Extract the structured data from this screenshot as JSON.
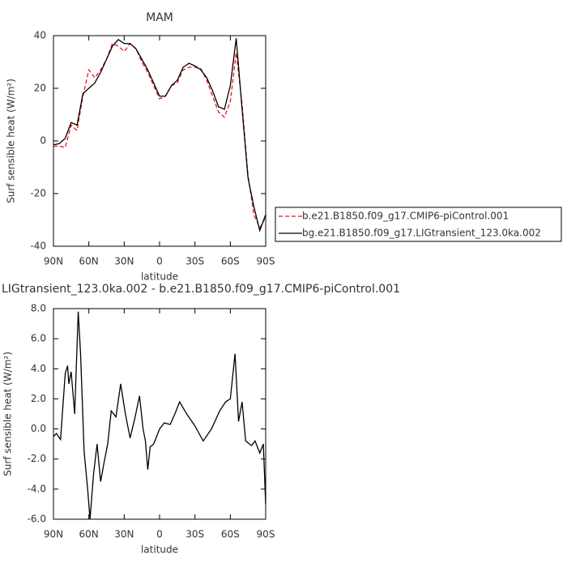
{
  "chart_data": [
    {
      "type": "line",
      "title": "MAM",
      "xlabel": "latitude",
      "ylabel": "Surf sensible heat (W/m²)",
      "x": [
        90,
        85,
        80,
        75,
        70,
        65,
        60,
        55,
        50,
        45,
        40,
        35,
        30,
        25,
        20,
        15,
        10,
        5,
        0,
        -5,
        -10,
        -15,
        -20,
        -25,
        -30,
        -35,
        -40,
        -45,
        -50,
        -55,
        -60,
        -65,
        -70,
        -75,
        -80,
        -85,
        -90
      ],
      "series": [
        {
          "name": "b.e21.B1850.f09_g17.CMIP6-piControl.001",
          "color": "#e8141c",
          "linestyle": "dashed",
          "values": [
            -2,
            -2,
            -2.5,
            6,
            4,
            17,
            27,
            24,
            27,
            31,
            37,
            36,
            34,
            37,
            35,
            30,
            26,
            21,
            16,
            17,
            21,
            22,
            27,
            28,
            28,
            27.5,
            23,
            17,
            11,
            9,
            15,
            33.5,
            14,
            -13,
            -28,
            -33,
            -29
          ]
        },
        {
          "name": "bg.e21.B1850.f09_g17.LIGtransient_123.0ka.002",
          "color": "#000000",
          "linestyle": "solid",
          "values": [
            -1.5,
            -1,
            1,
            7,
            6,
            18,
            20,
            22,
            26,
            31,
            36,
            38.5,
            37,
            37,
            35,
            31,
            27,
            22,
            17,
            17,
            21,
            23,
            28,
            29.5,
            28.5,
            27,
            24,
            19,
            13,
            12,
            21,
            39,
            12,
            -14,
            -25,
            -34,
            -28
          ]
        }
      ],
      "xlim": [
        90,
        -90
      ],
      "xticks": [
        {
          "value": 90,
          "label": "90N"
        },
        {
          "value": 60,
          "label": "60N"
        },
        {
          "value": 30,
          "label": "30N"
        },
        0,
        {
          "value": -30,
          "label": "30S"
        },
        {
          "value": -60,
          "label": "60S"
        },
        {
          "value": -90,
          "label": "90S"
        }
      ],
      "ylim": [
        -40,
        40
      ],
      "yticks": [
        -40,
        -20,
        0,
        20,
        40
      ],
      "legend": "right"
    },
    {
      "type": "line",
      "title": "LIGtransient_123.0ka.002 - b.e21.B1850.f09_g17.CMIP6-piControl.001",
      "xlabel": "latitude",
      "ylabel": "Surf sensible heat (W/m²)",
      "x": [
        90,
        87.5,
        84,
        80,
        78,
        77,
        75,
        72,
        69,
        67,
        64,
        61,
        59,
        56,
        53,
        50,
        47,
        44,
        41,
        37,
        33,
        29,
        25,
        21,
        17,
        14,
        12,
        10,
        8,
        5,
        0,
        -4,
        -9,
        -13,
        -17,
        -23,
        -30,
        -37,
        -44,
        -51,
        -56,
        -60,
        -64,
        -67,
        -70,
        -73,
        -78,
        -81,
        -85,
        -88,
        -90
      ],
      "series": [
        {
          "color": "#000000",
          "linestyle": "solid",
          "values": [
            -0.5,
            -0.3,
            -0.7,
            3.7,
            4.2,
            3,
            3.8,
            1,
            7.8,
            5,
            -1.5,
            -4,
            -6,
            -3,
            -1,
            -3.5,
            -2.2,
            -1,
            1.2,
            0.8,
            3,
            1,
            -0.6,
            0.7,
            2.2,
            0,
            -0.8,
            -2.7,
            -1.2,
            -1,
            0,
            0.4,
            0.3,
            1,
            1.8,
            1,
            0.2,
            -0.8,
            0,
            1.2,
            1.8,
            2,
            5,
            0.5,
            1.8,
            -0.8,
            -1.1,
            -0.8,
            -1.6,
            -1,
            -5
          ]
        }
      ],
      "xlim": [
        90,
        -90
      ],
      "xticks": [
        {
          "value": 90,
          "label": "90N"
        },
        {
          "value": 60,
          "label": "60N"
        },
        {
          "value": 30,
          "label": "30N"
        },
        0,
        {
          "value": -30,
          "label": "30S"
        },
        {
          "value": -60,
          "label": "60S"
        },
        {
          "value": -90,
          "label": "90S"
        }
      ],
      "ylim": [
        -6,
        8
      ],
      "yticks": [
        {
          "value": -6,
          "label": "-6.0"
        },
        {
          "value": -4,
          "label": "-4.0"
        },
        {
          "value": -2,
          "label": "-2.0"
        },
        {
          "value": 0,
          "label": "0.0"
        },
        {
          "value": 2,
          "label": "2.0"
        },
        {
          "value": 4,
          "label": "4.0"
        },
        {
          "value": 6,
          "label": "6.0"
        },
        {
          "value": 8,
          "label": "8.0"
        }
      ]
    }
  ]
}
